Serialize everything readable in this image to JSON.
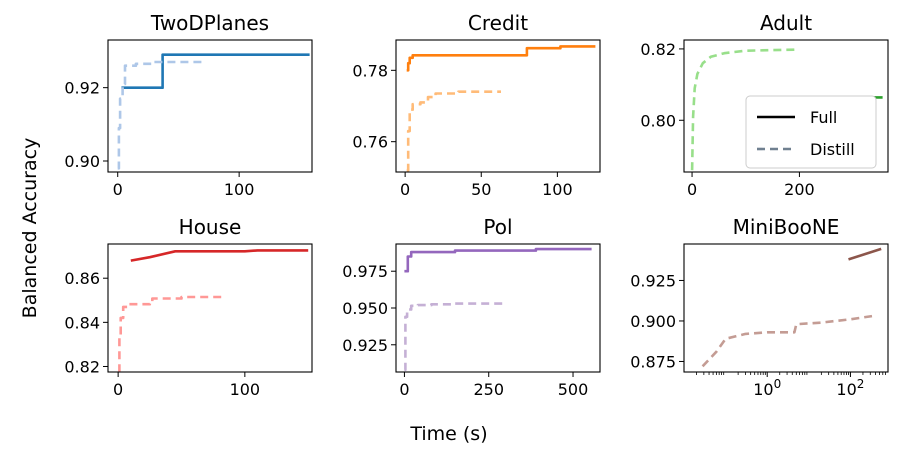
{
  "figure": {
    "ylabel": "Balanced Accuracy",
    "xlabel": "Time (s)"
  },
  "legend": {
    "entries": [
      {
        "label": "Full",
        "style": "solid"
      },
      {
        "label": "Distill",
        "style": "dashed"
      }
    ]
  },
  "chart_data": [
    {
      "type": "line",
      "title": "TwoDPlanes",
      "xscale": "linear",
      "xlim": [
        -8,
        160
      ],
      "ylim": [
        0.897,
        0.933
      ],
      "xticks": [
        0,
        100
      ],
      "xticklabels": [
        "0",
        "100"
      ],
      "yticks": [
        0.9,
        0.92
      ],
      "yticklabels": [
        "0.90",
        "0.92"
      ],
      "series": [
        {
          "name": "Full",
          "color": "#1f77b4",
          "dashed": false,
          "step": true,
          "x": [
            3,
            37,
            37,
            158
          ],
          "y": [
            0.92,
            0.92,
            0.929,
            0.929
          ]
        },
        {
          "name": "Distill",
          "color": "#aec7e8",
          "dashed": true,
          "step": true,
          "x": [
            0,
            1,
            2,
            4,
            6,
            15,
            30,
            70
          ],
          "y": [
            0.898,
            0.909,
            0.917,
            0.921,
            0.926,
            0.9265,
            0.927,
            0.927
          ]
        }
      ]
    },
    {
      "type": "line",
      "title": "Credit",
      "xscale": "linear",
      "xlim": [
        -6,
        128
      ],
      "ylim": [
        0.7515,
        0.7885
      ],
      "xticks": [
        0,
        50,
        100
      ],
      "xticklabels": [
        "0",
        "50",
        "100"
      ],
      "yticks": [
        0.76,
        0.78
      ],
      "yticklabels": [
        "0.76",
        "0.78"
      ],
      "series": [
        {
          "name": "Full",
          "color": "#ff7f0e",
          "dashed": false,
          "step": true,
          "x": [
            1,
            2,
            3,
            5,
            78,
            80,
            100,
            102,
            125
          ],
          "y": [
            0.78,
            0.782,
            0.7835,
            0.7842,
            0.7842,
            0.7862,
            0.7862,
            0.7867,
            0.7867
          ]
        },
        {
          "name": "Distill",
          "color": "#ffbb78",
          "dashed": true,
          "step": true,
          "x": [
            1,
            2,
            3,
            5,
            10,
            15,
            20,
            35,
            63
          ],
          "y": [
            0.752,
            0.763,
            0.769,
            0.7705,
            0.771,
            0.7725,
            0.7735,
            0.774,
            0.774
          ]
        }
      ]
    },
    {
      "type": "line",
      "title": "Adult",
      "xscale": "linear",
      "xlim": [
        -15,
        365
      ],
      "ylim": [
        0.7855,
        0.8225
      ],
      "xticks": [
        0,
        200
      ],
      "xticklabels": [
        "0",
        "200"
      ],
      "yticks": [
        0.8,
        0.82
      ],
      "yticklabels": [
        "0.80",
        "0.82"
      ],
      "series": [
        {
          "name": "Full",
          "color": "#2ca02c",
          "dashed": false,
          "step": false,
          "x": [
            105,
            355
          ],
          "y": [
            0.8064,
            0.8064
          ]
        },
        {
          "name": "Distill",
          "color": "#98df8a",
          "dashed": true,
          "step": false,
          "x": [
            0,
            2,
            5,
            10,
            20,
            35,
            60,
            100,
            195
          ],
          "y": [
            0.786,
            0.801,
            0.809,
            0.813,
            0.816,
            0.8178,
            0.8188,
            0.8195,
            0.8198
          ]
        }
      ]
    },
    {
      "type": "line",
      "title": "House",
      "xscale": "linear",
      "xlim": [
        -8,
        153
      ],
      "ylim": [
        0.8175,
        0.8755
      ],
      "xticks": [
        0,
        100
      ],
      "xticklabels": [
        "0",
        "100"
      ],
      "yticks": [
        0.82,
        0.84,
        0.86
      ],
      "yticklabels": [
        "0.82",
        "0.84",
        "0.86"
      ],
      "series": [
        {
          "name": "Full",
          "color": "#d62728",
          "dashed": false,
          "step": false,
          "x": [
            10,
            25,
            45,
            100,
            110,
            150
          ],
          "y": [
            0.868,
            0.8695,
            0.8722,
            0.8722,
            0.8726,
            0.8726
          ]
        },
        {
          "name": "Distill",
          "color": "#ff9896",
          "dashed": true,
          "step": true,
          "x": [
            0,
            1,
            2,
            4,
            8,
            14,
            25,
            27,
            50,
            82
          ],
          "y": [
            0.818,
            0.834,
            0.842,
            0.847,
            0.8482,
            0.8482,
            0.8485,
            0.8508,
            0.8515,
            0.8518
          ]
        }
      ]
    },
    {
      "type": "line",
      "title": "Pol",
      "xscale": "linear",
      "xlim": [
        -25,
        580
      ],
      "ylim": [
        0.9065,
        0.9935
      ],
      "xticks": [
        0,
        250,
        500
      ],
      "xticklabels": [
        "0",
        "250",
        "500"
      ],
      "yticks": [
        0.925,
        0.95,
        0.975
      ],
      "yticklabels": [
        "0.925",
        "0.950",
        "0.975"
      ],
      "series": [
        {
          "name": "Full",
          "color": "#9467bd",
          "dashed": false,
          "step": true,
          "x": [
            0,
            10,
            20,
            140,
            150,
            380,
            390,
            555
          ],
          "y": [
            0.975,
            0.985,
            0.988,
            0.988,
            0.989,
            0.989,
            0.99,
            0.99
          ]
        },
        {
          "name": "Distill",
          "color": "#c5b0d5",
          "dashed": true,
          "step": true,
          "x": [
            0,
            3,
            8,
            20,
            40,
            80,
            150,
            290
          ],
          "y": [
            0.908,
            0.944,
            0.949,
            0.9515,
            0.952,
            0.9525,
            0.953,
            0.9535
          ]
        }
      ]
    },
    {
      "type": "line",
      "title": "MiniBooNE",
      "xscale": "log",
      "xlim": [
        0.01,
        800
      ],
      "ylim": [
        0.8685,
        0.9475
      ],
      "xticks": [
        1,
        100
      ],
      "xticklabels": [
        "10^0",
        "10^2"
      ],
      "yticks": [
        0.875,
        0.9,
        0.925
      ],
      "yticklabels": [
        "0.875",
        "0.900",
        "0.925"
      ],
      "series": [
        {
          "name": "Full",
          "color": "#8c564b",
          "dashed": false,
          "step": false,
          "x": [
            90,
            550
          ],
          "y": [
            0.938,
            0.9445
          ]
        },
        {
          "name": "Distill",
          "color": "#c49c94",
          "dashed": true,
          "step": false,
          "x": [
            0.028,
            0.06,
            0.1,
            0.3,
            1,
            3,
            4.5,
            5,
            20,
            100,
            330
          ],
          "y": [
            0.872,
            0.881,
            0.889,
            0.892,
            0.893,
            0.893,
            0.893,
            0.898,
            0.899,
            0.901,
            0.903
          ]
        }
      ]
    }
  ]
}
